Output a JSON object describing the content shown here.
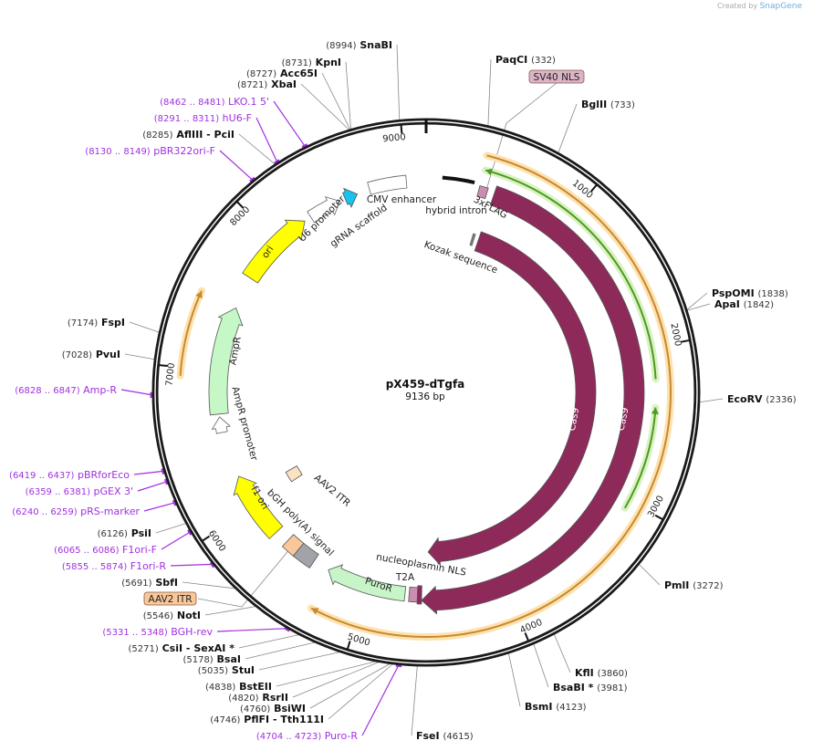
{
  "watermark": {
    "created_by": "Created by",
    "brand": "SnapGene"
  },
  "map": {
    "title": "pX459-dTgfa",
    "size": "9136 bp",
    "length": 9136
  },
  "ticks": [
    "1000",
    "2000",
    "3000",
    "4000",
    "5000",
    "6000",
    "7000",
    "8000",
    "9000"
  ],
  "sites": [
    {
      "kind": "enzyme",
      "pos": "(8994)",
      "name": "SnaBI",
      "at": 8994
    },
    {
      "kind": "enzyme",
      "pos": "(8731)",
      "name": "KpnI",
      "at": 8731
    },
    {
      "kind": "enzyme",
      "pos": "(8727)",
      "name": "Acc65I",
      "at": 8727
    },
    {
      "kind": "enzyme",
      "pos": "(8721)",
      "name": "XbaI",
      "at": 8721
    },
    {
      "kind": "primer",
      "pos": "(8462 .. 8481)",
      "name": "LKO.1 5'",
      "at": 8471
    },
    {
      "kind": "primer",
      "pos": "(8291 .. 8311)",
      "name": "hU6-F",
      "at": 8301
    },
    {
      "kind": "enzyme",
      "pos": "(8285)",
      "name": "AflIII  - PciI",
      "at": 8285
    },
    {
      "kind": "primer",
      "pos": "(8130 .. 8149)",
      "name": "pBR322ori-F",
      "at": 8140
    },
    {
      "kind": "enzyme",
      "pos": "(7174)",
      "name": "FspI",
      "at": 7174
    },
    {
      "kind": "enzyme",
      "pos": "(7028)",
      "name": "PvuI",
      "at": 7028
    },
    {
      "kind": "primer",
      "pos": "(6828 .. 6847)",
      "name": "Amp-R",
      "at": 6838
    },
    {
      "kind": "primer",
      "pos": "(6419 .. 6437)",
      "name": "pBRforEco",
      "at": 6428
    },
    {
      "kind": "primer",
      "pos": "(6359 .. 6381)",
      "name": "pGEX 3'",
      "at": 6370
    },
    {
      "kind": "primer",
      "pos": "(6240 .. 6259)",
      "name": "pRS-marker",
      "at": 6250
    },
    {
      "kind": "enzyme",
      "pos": "(6126)",
      "name": "PsiI",
      "at": 6126
    },
    {
      "kind": "primer",
      "pos": "(6065 .. 6086)",
      "name": "F1ori-F",
      "at": 6075
    },
    {
      "kind": "primer",
      "pos": "(5855 .. 5874)",
      "name": "F1ori-R",
      "at": 5865
    },
    {
      "kind": "enzyme",
      "pos": "(5691)",
      "name": "SbfI",
      "at": 5691
    },
    {
      "kind": "enzyme",
      "pos": "(5546)",
      "name": "NotI",
      "at": 5546
    },
    {
      "kind": "primer",
      "pos": "(5331 .. 5348)",
      "name": "BGH-rev",
      "at": 5340
    },
    {
      "kind": "enzyme",
      "pos": "(5271)",
      "name": "CsiI  - SexAI *",
      "at": 5271
    },
    {
      "kind": "enzyme",
      "pos": "(5178)",
      "name": "BsaI",
      "at": 5178
    },
    {
      "kind": "enzyme",
      "pos": "(5035)",
      "name": "StuI",
      "at": 5035
    },
    {
      "kind": "enzyme",
      "pos": "(4838)",
      "name": "BstEII",
      "at": 4838
    },
    {
      "kind": "enzyme",
      "pos": "(4820)",
      "name": "RsrII",
      "at": 4820
    },
    {
      "kind": "enzyme",
      "pos": "(4760)",
      "name": "BsiWI",
      "at": 4760
    },
    {
      "kind": "enzyme",
      "pos": "(4746)",
      "name": "PflFI  - Tth111I",
      "at": 4746
    },
    {
      "kind": "primer",
      "pos": "(4704 .. 4723)",
      "name": "Puro-R",
      "at": 4713
    },
    {
      "kind": "enzyme",
      "pos": "(4615)",
      "name": "FseI",
      "at": 4615
    },
    {
      "kind": "enzyme",
      "pos": "(4123)",
      "name": "BsmI",
      "at": 4123
    },
    {
      "kind": "enzyme",
      "pos": "(3981)",
      "name": "BsaBI *",
      "at": 3981
    },
    {
      "kind": "enzyme",
      "pos": "(3860)",
      "name": "KflI",
      "at": 3860
    },
    {
      "kind": "enzyme",
      "pos": "(3272)",
      "name": "PmlI",
      "at": 3272
    },
    {
      "kind": "enzyme",
      "pos": "(2336)",
      "name": "EcoRV",
      "at": 2336
    },
    {
      "kind": "enzyme",
      "pos": "(1842)",
      "name": "ApaI",
      "at": 1842
    },
    {
      "kind": "enzyme",
      "pos": "(1838)",
      "name": "PspOMI",
      "at": 1838
    },
    {
      "kind": "enzyme",
      "pos": "(733)",
      "name": "BglII",
      "at": 733
    },
    {
      "kind": "enzyme",
      "pos": "(332)",
      "name": "PaqCI",
      "at": 332
    }
  ],
  "boxed_labels": [
    {
      "name": "SV40 NLS",
      "color": "#dcb4c8",
      "at": 420
    },
    {
      "name": "AAV2 ITR",
      "color": "#f9c79a",
      "at": 5610
    }
  ],
  "features": [
    {
      "label": "Cas9",
      "type": "arrow",
      "color": "#8e2a5a",
      "start": 480,
      "end": 4550
    },
    {
      "label": "Cas9",
      "type": "arrow",
      "color": "#8e2a5a",
      "start": 480,
      "end": 4600
    },
    {
      "label": "3xFLAG",
      "type": "box",
      "color": "#c98fb0",
      "start": 370,
      "end": 430
    },
    {
      "label": "hybrid intron",
      "type": "line",
      "color": "#111111",
      "start": 110,
      "end": 330
    },
    {
      "label": "Kozak sequence",
      "type": "box",
      "color": "#999999",
      "start": 420,
      "end": 440
    },
    {
      "label": "CMV enhancer",
      "type": "box",
      "color": "#ffffff",
      "start": 8740,
      "end": 9000
    },
    {
      "label": "gRNA scaffold",
      "type": "arrow",
      "color": "#19c3f0",
      "start": 8560,
      "end": 8650
    },
    {
      "label": "U6 promoter",
      "type": "arrow",
      "color": "#ffffff",
      "start": 8290,
      "end": 8520
    },
    {
      "label": "ori",
      "type": "arrow",
      "color": "#ffff00",
      "start": 7690,
      "end": 8240
    },
    {
      "label": "AmpR",
      "type": "arrow",
      "color": "#c6f7c6",
      "start": 6700,
      "end": 7460
    },
    {
      "label": "AmpR promoter",
      "type": "arrow",
      "color": "#ffffff",
      "start": 6570,
      "end": 6680
    },
    {
      "label": "f1 ori",
      "type": "arrow",
      "color": "#ffff00",
      "start": 5760,
      "end": 6240
    },
    {
      "label": "bGH poly(A) signal",
      "type": "box",
      "color": "#a0a4a8",
      "start": 5420,
      "end": 5560
    },
    {
      "label": "AAV2 ITR",
      "type": "box",
      "color": "#f9c79a",
      "start": 5560,
      "end": 5660
    },
    {
      "label": "AAV2 ITR",
      "type": "box",
      "color": "#fde1c4",
      "start": 6000,
      "end": 6100
    },
    {
      "label": "PuroR",
      "type": "arrow",
      "color": "#c8f5c8",
      "start": 4720,
      "end": 5300
    },
    {
      "label": "T2A",
      "type": "box",
      "color": "#c98fb0",
      "start": 4630,
      "end": 4690
    },
    {
      "label": "nucleoplasmin NLS",
      "type": "box",
      "color": "#8e2a5a",
      "start": 4600,
      "end": 4630
    }
  ]
}
